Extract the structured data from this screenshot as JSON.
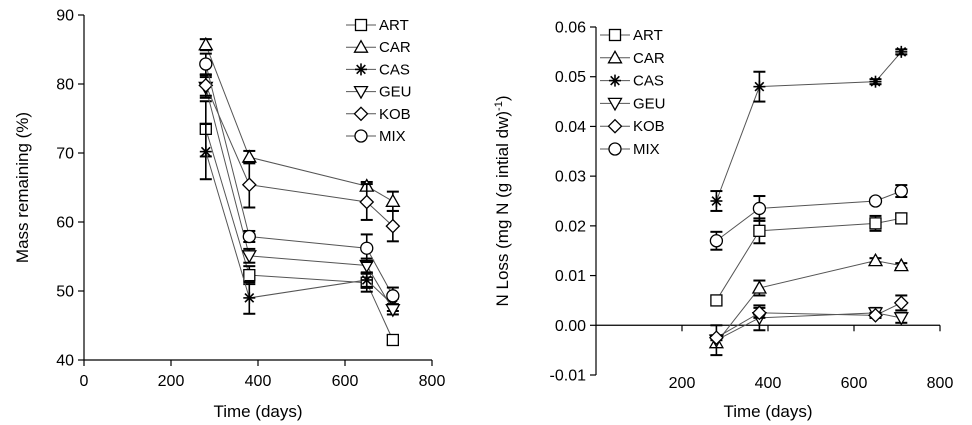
{
  "chart_data": [
    {
      "type": "scatter",
      "xlabel": "Time (days)",
      "ylabel": "Mass remaining (%)",
      "xlim": [
        0,
        800
      ],
      "ylim": [
        40,
        90
      ],
      "xticks": [
        0,
        200,
        400,
        600,
        800
      ],
      "yticks": [
        40,
        50,
        60,
        70,
        80,
        90
      ],
      "legend_position": "top-right",
      "lines_connected": true,
      "error_bars": true,
      "x": [
        280,
        380,
        650,
        710
      ],
      "series": [
        {
          "name": "ART",
          "marker": "square",
          "values": [
            73.5,
            52.3,
            51.2,
            42.9
          ],
          "errors": [
            4.0,
            1.3,
            1.3,
            0.7
          ]
        },
        {
          "name": "CAR",
          "marker": "triangle-up",
          "values": [
            85.7,
            69.4,
            65.2,
            63.0
          ],
          "errors": [
            0.8,
            0.9,
            0.6,
            1.4
          ]
        },
        {
          "name": "CAS",
          "marker": "asterisk",
          "values": [
            70.2,
            49.0,
            51.6,
            48.0
          ],
          "errors": [
            4.0,
            2.3,
            1.0,
            0.9
          ]
        },
        {
          "name": "GEU",
          "marker": "triangle-down",
          "values": [
            79.5,
            55.1,
            53.7,
            47.3
          ],
          "errors": [
            1.5,
            1.0,
            1.0,
            0.7
          ]
        },
        {
          "name": "KOB",
          "marker": "diamond",
          "values": [
            79.8,
            65.4,
            62.9,
            59.4
          ],
          "errors": [
            1.5,
            3.3,
            2.6,
            2.2
          ]
        },
        {
          "name": "MIX",
          "marker": "circle",
          "values": [
            82.9,
            57.9,
            56.2,
            49.3
          ],
          "errors": [
            1.5,
            0.8,
            2.0,
            1.2
          ]
        }
      ]
    },
    {
      "type": "scatter",
      "xlabel": "Time (days)",
      "ylabel": "N Loss (mg N (g intial dw)",
      "ylabel_superscript": "-1",
      "ylabel_close": ")",
      "xlim": [
        0,
        800
      ],
      "ylim": [
        -0.01,
        0.06
      ],
      "xticks": [
        200,
        400,
        600,
        800
      ],
      "yticks": [
        "-0.01",
        "0.00",
        "0.01",
        "0.02",
        "0.03",
        "0.04",
        "0.05",
        "0.06"
      ],
      "legend_position": "top-left",
      "lines_connected": true,
      "error_bars": true,
      "x": [
        280,
        380,
        650,
        710
      ],
      "series": [
        {
          "name": "ART",
          "marker": "square",
          "values": [
            0.005,
            0.019,
            0.0205,
            0.0215
          ],
          "errors": [
            0.0,
            0.0025,
            0.0015,
            0.001
          ]
        },
        {
          "name": "CAR",
          "marker": "triangle-up",
          "values": [
            -0.0035,
            0.0075,
            0.013,
            0.012
          ],
          "errors": [
            0.0,
            0.0015,
            0.0005,
            0.0005
          ]
        },
        {
          "name": "CAS",
          "marker": "asterisk",
          "values": [
            0.025,
            0.048,
            0.049,
            0.055
          ],
          "errors": [
            0.002,
            0.003,
            0.0005,
            0.0005
          ]
        },
        {
          "name": "GEU",
          "marker": "triangle-down",
          "values": [
            -0.003,
            0.0015,
            0.0025,
            0.0015
          ],
          "errors": [
            0.003,
            0.0025,
            0.001,
            0.001
          ]
        },
        {
          "name": "KOB",
          "marker": "diamond",
          "values": [
            -0.0025,
            0.0025,
            0.002,
            0.0045
          ],
          "errors": [
            0.0005,
            0.001,
            0.0005,
            0.0015
          ]
        },
        {
          "name": "MIX",
          "marker": "circle",
          "values": [
            0.017,
            0.0235,
            0.025,
            0.027
          ],
          "errors": [
            0.0018,
            0.0025,
            0.0005,
            0.0012
          ]
        }
      ]
    }
  ]
}
